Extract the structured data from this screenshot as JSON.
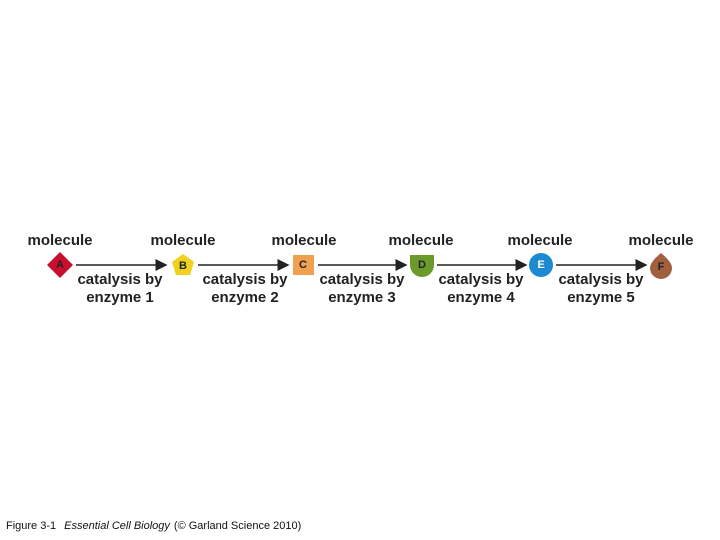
{
  "molecules": [
    {
      "label": "molecule",
      "letter": "A"
    },
    {
      "label": "molecule",
      "letter": "B"
    },
    {
      "label": "molecule",
      "letter": "C"
    },
    {
      "label": "molecule",
      "letter": "D"
    },
    {
      "label": "molecule",
      "letter": "E"
    },
    {
      "label": "molecule",
      "letter": "F"
    }
  ],
  "steps": [
    {
      "line1": "catalysis by",
      "line2": "enzyme 1"
    },
    {
      "line1": "catalysis by",
      "line2": "enzyme 2"
    },
    {
      "line1": "catalysis by",
      "line2": "enzyme 3"
    },
    {
      "line1": "catalysis by",
      "line2": "enzyme 4"
    },
    {
      "line1": "catalysis by",
      "line2": "enzyme 5"
    }
  ],
  "caption": {
    "figure": "Figure 3-1",
    "book": "Essential Cell Biology",
    "credit": "(© Garland Science 2010)"
  }
}
